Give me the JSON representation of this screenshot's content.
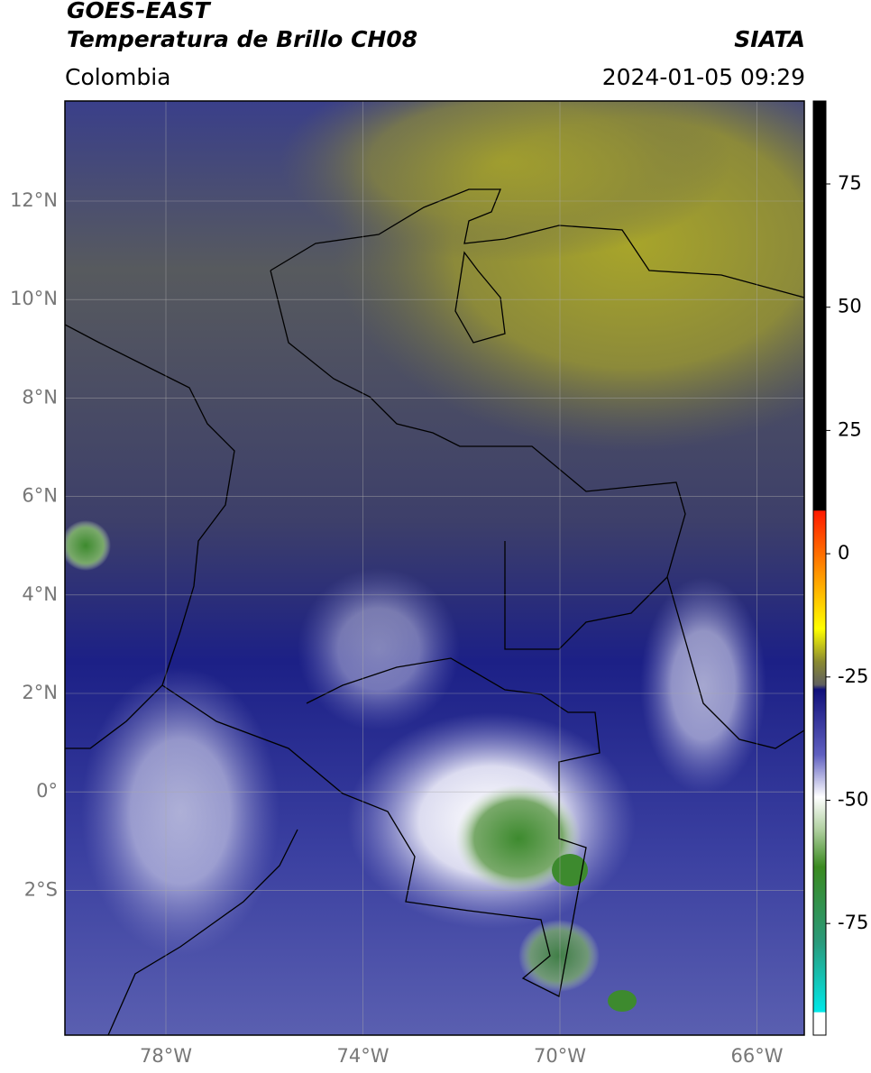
{
  "header": {
    "title": "GOES-EAST",
    "subtitle": "Temperatura de Brillo CH08",
    "region": "Colombia",
    "source": "SIATA",
    "timestamp": "2024-01-05 09:29"
  },
  "map": {
    "lat_ticks": [
      "12°N",
      "10°N",
      "8°N",
      "6°N",
      "4°N",
      "2°N",
      "0°",
      "2°S"
    ],
    "lon_ticks": [
      "78°W",
      "74°W",
      "70°W",
      "66°W"
    ]
  },
  "colorbar": {
    "ticks": [
      75,
      50,
      25,
      0,
      -25,
      -50,
      -75
    ]
  }
}
